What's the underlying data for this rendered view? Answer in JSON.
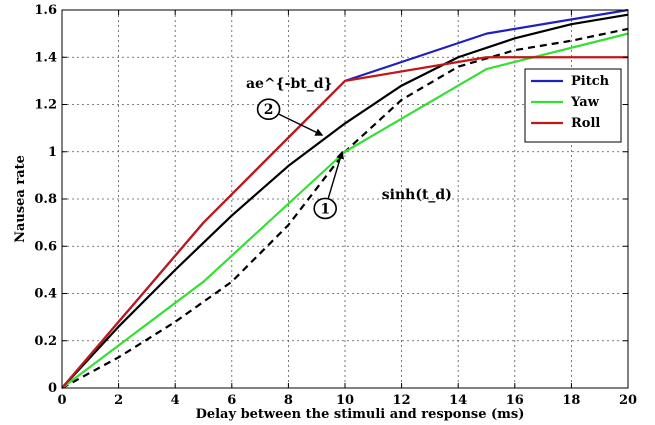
{
  "chart_data": {
    "type": "line",
    "title": "",
    "xlabel": "Delay between the stimuli and response (ms)",
    "ylabel": "Nausea rate",
    "xlim": [
      0,
      20
    ],
    "ylim": [
      0,
      1.6
    ],
    "xticks": [
      "0",
      "2",
      "4",
      "6",
      "8",
      "10",
      "12",
      "14",
      "16",
      "18",
      "20"
    ],
    "yticks": [
      "0",
      "0.2",
      "0.4",
      "0.6",
      "0.8",
      "1",
      "1.2",
      "1.4",
      "1.6"
    ],
    "grid": true,
    "legend_position": "right",
    "series": [
      {
        "name": "Pitch",
        "color": "#2020c0",
        "style": "solid",
        "x": [
          0,
          5,
          10,
          15,
          20
        ],
        "y": [
          0,
          0.7,
          1.3,
          1.5,
          1.6
        ]
      },
      {
        "name": "Yaw",
        "color": "#33e033",
        "style": "solid",
        "x": [
          0,
          5,
          10,
          15,
          20
        ],
        "y": [
          0,
          0.45,
          1.0,
          1.35,
          1.5
        ]
      },
      {
        "name": "Roll",
        "color": "#c01818",
        "style": "solid",
        "x": [
          0,
          5,
          10,
          15,
          20
        ],
        "y": [
          0,
          0.7,
          1.3,
          1.4,
          1.4
        ]
      },
      {
        "color": "#000000",
        "style": "solid",
        "x": [
          0,
          2,
          4,
          6,
          8,
          10,
          12,
          14,
          16,
          18,
          20
        ],
        "y": [
          0,
          0.26,
          0.5,
          0.73,
          0.94,
          1.12,
          1.28,
          1.4,
          1.48,
          1.54,
          1.58
        ]
      },
      {
        "color": "#000000",
        "style": "dashed",
        "x": [
          0,
          2,
          4,
          6,
          8,
          10,
          12,
          14,
          16,
          18,
          20
        ],
        "y": [
          0,
          0.13,
          0.28,
          0.45,
          0.69,
          1.0,
          1.22,
          1.36,
          1.43,
          1.47,
          1.52
        ]
      }
    ],
    "annotations": [
      {
        "id": "1",
        "label": "sinh(t_d)",
        "circle_at": [
          9.3,
          0.76
        ],
        "arrow_to": [
          9.9,
          1.0
        ],
        "text_at": [
          11.3,
          0.8
        ]
      },
      {
        "id": "2",
        "label": "ae^{-bt_d}",
        "circle_at": [
          7.3,
          1.18
        ],
        "arrow_to": [
          9.2,
          1.07
        ],
        "text_at": [
          6.5,
          1.27
        ]
      }
    ]
  }
}
